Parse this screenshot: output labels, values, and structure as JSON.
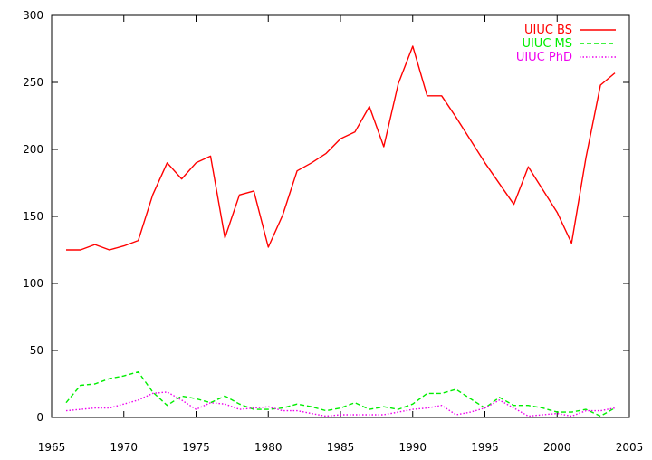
{
  "chart_data": {
    "type": "line",
    "title": "",
    "xlabel": "",
    "ylabel": "",
    "xlim": [
      1965,
      2005
    ],
    "ylim": [
      0,
      300
    ],
    "grid": false,
    "legend_position": "top-right",
    "x_ticks": [
      "1965",
      "1970",
      "1975",
      "1980",
      "1985",
      "1990",
      "1995",
      "2000",
      "2005"
    ],
    "y_ticks": [
      "0",
      "50",
      "100",
      "150",
      "200",
      "250",
      "300"
    ],
    "series": [
      {
        "name": "UIUC BS",
        "color": "#ff0000",
        "dash": "solid",
        "x": [
          1966,
          1967,
          1968,
          1969,
          1970,
          1971,
          1972,
          1973,
          1974,
          1975,
          1976,
          1977,
          1978,
          1979,
          1980,
          1981,
          1982,
          1983,
          1984,
          1985,
          1986,
          1987,
          1988,
          1989,
          1990,
          1991,
          1992,
          1993,
          1995,
          1997,
          1998,
          2000,
          2001,
          2002,
          2003,
          2004
        ],
        "values": [
          125,
          125,
          129,
          125,
          128,
          132,
          166,
          190,
          178,
          190,
          195,
          134,
          166,
          169,
          127,
          151,
          184,
          190,
          197,
          208,
          213,
          232,
          202,
          249,
          277,
          240,
          240,
          224,
          190,
          159,
          187,
          153,
          130,
          194,
          248,
          257
        ]
      },
      {
        "name": "UIUC MS",
        "color": "#00ee00",
        "dash": "dashed",
        "x": [
          1966,
          1967,
          1968,
          1969,
          1970,
          1971,
          1972,
          1973,
          1974,
          1975,
          1976,
          1977,
          1978,
          1979,
          1980,
          1981,
          1982,
          1983,
          1984,
          1985,
          1986,
          1987,
          1988,
          1989,
          1990,
          1991,
          1992,
          1993,
          1994,
          1995,
          1996,
          1997,
          1998,
          1999,
          2000,
          2001,
          2002,
          2003,
          2004
        ],
        "values": [
          11,
          24,
          25,
          29,
          31,
          34,
          19,
          9,
          16,
          14,
          11,
          16,
          10,
          6,
          6,
          7,
          10,
          8,
          5,
          7,
          11,
          6,
          8,
          6,
          10,
          18,
          18,
          21,
          14,
          7,
          15,
          9,
          9,
          7,
          4,
          4,
          6,
          1,
          7
        ]
      },
      {
        "name": "UIUC PhD",
        "color": "#ee00ee",
        "dash": "dotted",
        "x": [
          1966,
          1967,
          1968,
          1969,
          1970,
          1971,
          1972,
          1973,
          1974,
          1975,
          1976,
          1977,
          1978,
          1979,
          1980,
          1981,
          1982,
          1983,
          1984,
          1985,
          1986,
          1987,
          1988,
          1989,
          1990,
          1991,
          1992,
          1993,
          1994,
          1995,
          1996,
          1997,
          1998,
          1999,
          2000,
          2001,
          2002,
          2003,
          2004
        ],
        "values": [
          5,
          6,
          7,
          7,
          10,
          13,
          18,
          19,
          13,
          6,
          11,
          10,
          6,
          7,
          8,
          5,
          5,
          3,
          1,
          2,
          2,
          2,
          2,
          4,
          6,
          7,
          9,
          2,
          4,
          7,
          13,
          7,
          1,
          2,
          3,
          1,
          5,
          5,
          7
        ]
      }
    ]
  }
}
